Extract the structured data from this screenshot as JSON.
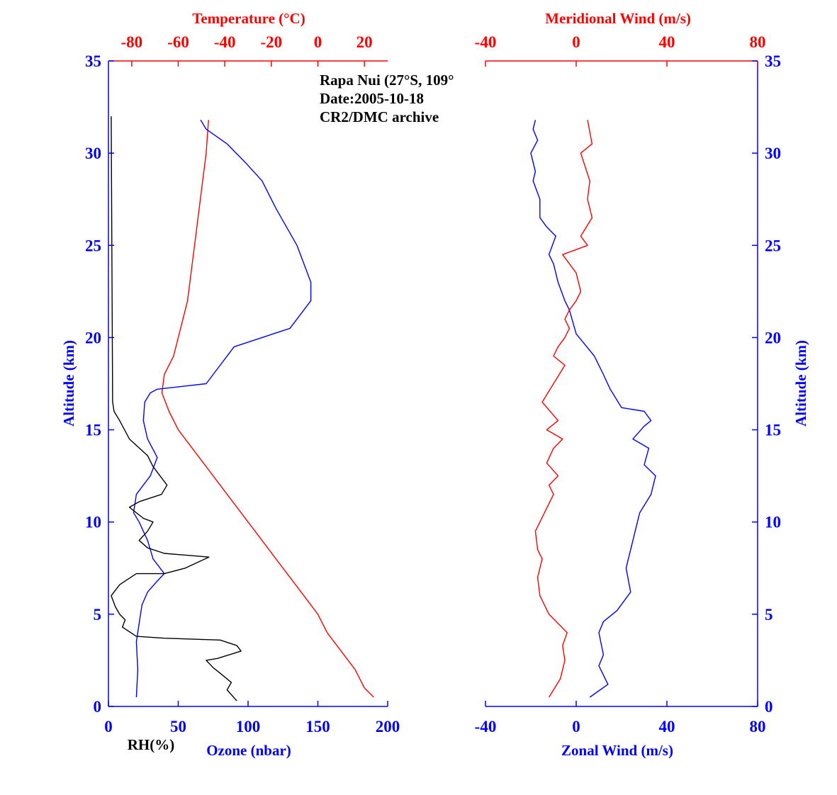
{
  "colors": {
    "blue": "#0000ff",
    "red": "#ff0000",
    "black": "#000000"
  },
  "annotation": {
    "line1": "Rapa Nui (27°S, 109°",
    "line2": "Date:2005-10-18",
    "line3": "CR2/DMC archive"
  },
  "chart_data": [
    {
      "type": "line",
      "panel": "left",
      "ylabel": "Altitude (km)",
      "ylim": [
        0,
        35
      ],
      "yticks": [
        "0",
        "5",
        "10",
        "15",
        "20",
        "25",
        "30",
        "35"
      ],
      "top_axis": {
        "label": "Temperature (°C)",
        "range": [
          -90,
          30
        ],
        "ticks": [
          "-80",
          "-60",
          "-40",
          "-20",
          "0",
          "20"
        ],
        "color": "#ff0000"
      },
      "bottom_axis": {
        "label": "Ozone (nbar)",
        "range": [
          0,
          200
        ],
        "ticks": [
          "0",
          "50",
          "100",
          "150",
          "200"
        ],
        "color": "#0000ff",
        "extra_label": "RH(%)"
      },
      "series": [
        {
          "name": "Temperature (°C)",
          "axis": "top",
          "color": "#ff0000",
          "x": [
            24,
            20,
            16,
            10,
            4,
            0,
            -6,
            -12,
            -18,
            -24,
            -30,
            -36,
            -42,
            -48,
            -54,
            -60,
            -64,
            -67,
            -66,
            -62,
            -60,
            -58,
            -56,
            -55,
            -54,
            -53,
            -52,
            -50,
            -48,
            -47
          ],
          "y": [
            0.5,
            1,
            2,
            3,
            4,
            5,
            6,
            7,
            8,
            9,
            10,
            11,
            12,
            13,
            14,
            15,
            16,
            17,
            18,
            19,
            20,
            21,
            22,
            23,
            24,
            25,
            26,
            28,
            30,
            31.8
          ]
        },
        {
          "name": "Ozone (nbar)",
          "axis": "bottom",
          "color": "#0000ff",
          "x": [
            20,
            21,
            20,
            22,
            24,
            28,
            35,
            40,
            32,
            28,
            22,
            18,
            20,
            30,
            35,
            28,
            25,
            26,
            30,
            35,
            70,
            80,
            90,
            110,
            130,
            138,
            145,
            145,
            140,
            135,
            120,
            110,
            98,
            85,
            70,
            66
          ],
          "y": [
            0.5,
            2,
            3.5,
            4.5,
            5.5,
            6.2,
            6.8,
            7.2,
            8,
            9,
            10,
            10.5,
            11.5,
            12.5,
            13.5,
            14.5,
            15.5,
            16.5,
            17,
            17.2,
            17.5,
            18.5,
            19.5,
            20,
            20.5,
            21.3,
            22,
            23,
            24,
            25,
            27,
            28.5,
            29.5,
            30.5,
            31.3,
            31.8
          ]
        },
        {
          "name": "RH(%)",
          "axis": "bottom",
          "color": "#000000",
          "x": [
            92,
            85,
            88,
            80,
            75,
            70,
            78,
            95,
            92,
            80,
            40,
            20,
            10,
            12,
            8,
            5,
            2,
            8,
            20,
            40,
            55,
            72,
            40,
            28,
            22,
            28,
            32,
            25,
            15,
            22,
            38,
            42,
            32,
            28,
            15,
            8,
            4,
            3,
            2
          ],
          "y": [
            0.3,
            0.9,
            1.3,
            1.8,
            2.1,
            2.5,
            2.6,
            3,
            3.3,
            3.6,
            3.7,
            3.8,
            4.3,
            4.7,
            5,
            5.4,
            6,
            6.6,
            7.2,
            7.2,
            7.5,
            8.1,
            8.3,
            8.6,
            9,
            9.5,
            10,
            10.2,
            10.8,
            11.1,
            11.5,
            12,
            13,
            13.6,
            14.5,
            15.5,
            16,
            16.5,
            32
          ]
        }
      ]
    },
    {
      "type": "line",
      "panel": "right",
      "ylabel": "Altitude (km)",
      "ylim": [
        0,
        35
      ],
      "yticks": [
        "0",
        "5",
        "10",
        "15",
        "20",
        "25",
        "30",
        "35"
      ],
      "top_axis": {
        "label": "Meridional Wind (m/s)",
        "range": [
          -40,
          80
        ],
        "ticks": [
          "-40",
          "0",
          "40",
          "80"
        ],
        "color": "#ff0000"
      },
      "bottom_axis": {
        "label": "Zonal Wind (m/s)",
        "range": [
          -40,
          80
        ],
        "ticks": [
          "-40",
          "0",
          "40",
          "80"
        ],
        "color": "#0000ff"
      },
      "series": [
        {
          "name": "Meridional Wind (m/s)",
          "axis": "top",
          "color": "#ff0000",
          "x": [
            -12,
            -7,
            -5,
            -6,
            -4,
            -8,
            -12,
            -16,
            -17,
            -15,
            -17,
            -18,
            -14,
            -10,
            -12,
            -8,
            -13,
            -10,
            -6,
            -13,
            -8,
            -15,
            -10,
            -5,
            -10,
            -8,
            -5,
            -3,
            -5,
            -3,
            0,
            2,
            0,
            -6,
            5,
            2,
            7,
            5,
            6,
            2,
            7,
            5
          ],
          "y": [
            0.5,
            1.5,
            2.5,
            3.3,
            4,
            4.5,
            5,
            6,
            7,
            8,
            8.5,
            9.5,
            10.5,
            11.5,
            12,
            12.5,
            13.2,
            14,
            14.5,
            15,
            15.5,
            16.5,
            17.5,
            18.5,
            19,
            19.5,
            20,
            20.5,
            21,
            21.5,
            22,
            22.5,
            23.5,
            24.5,
            25,
            25.5,
            26.5,
            27.5,
            28.5,
            30,
            30.5,
            31.8
          ]
        },
        {
          "name": "Zonal Wind (m/s)",
          "axis": "bottom",
          "color": "#0000ff",
          "x": [
            6,
            14,
            10,
            12,
            10,
            12,
            18,
            24,
            22,
            24,
            26,
            28,
            33,
            35,
            30,
            32,
            25,
            30,
            33,
            30,
            20,
            15,
            12,
            8,
            4,
            0,
            -3,
            -5,
            -8,
            -10,
            -12,
            -9,
            -13,
            -16,
            -16,
            -19,
            -18,
            -20,
            -17,
            -19,
            -18
          ],
          "y": [
            0.5,
            1.2,
            2.2,
            2.8,
            4,
            4.6,
            5.2,
            6.2,
            7.5,
            8.5,
            9.5,
            10.5,
            11.5,
            12.5,
            13.1,
            14,
            14.5,
            15.2,
            15.5,
            16,
            16.2,
            17.2,
            18,
            19,
            19.6,
            20.2,
            21.5,
            22,
            23,
            24,
            24.5,
            25.5,
            26,
            26.5,
            27.5,
            28.5,
            29,
            30,
            30.7,
            31.3,
            31.8
          ]
        }
      ]
    }
  ]
}
